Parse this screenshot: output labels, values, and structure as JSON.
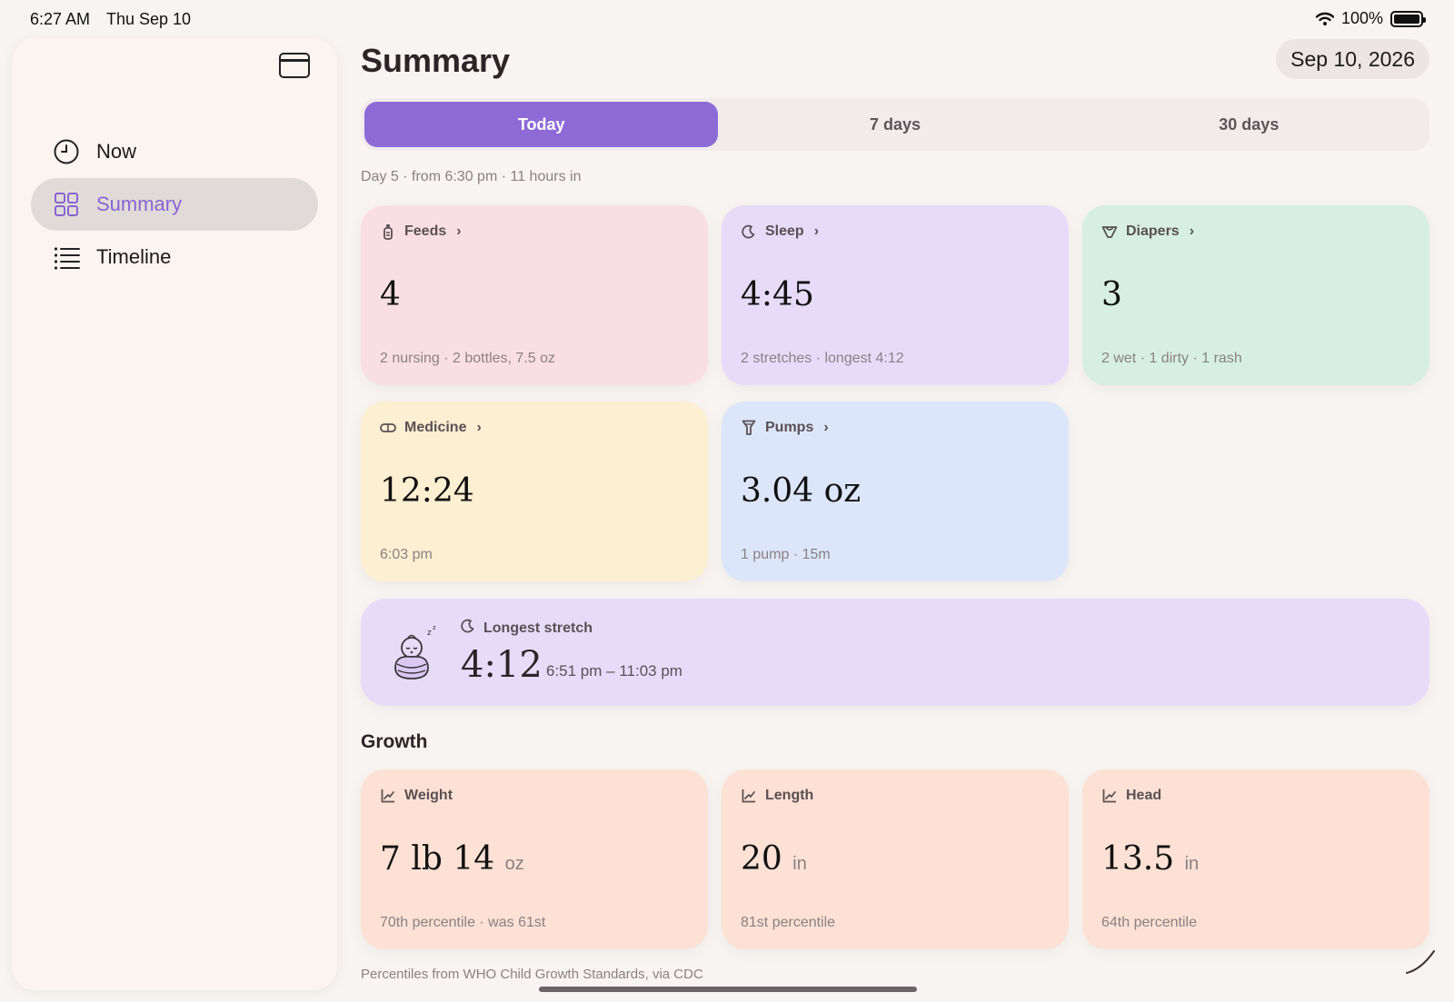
{
  "status": {
    "time": "6:27 AM",
    "day": "Thu Sep 10",
    "battery": "100%"
  },
  "sidebar": {
    "items": [
      {
        "label": "Now",
        "icon": "clock-icon"
      },
      {
        "label": "Summary",
        "icon": "grid-icon"
      },
      {
        "label": "Timeline",
        "icon": "list-icon"
      }
    ]
  },
  "header": {
    "title": "Summary",
    "date": "Sep 10, 2026"
  },
  "tabs": [
    {
      "label": "Today"
    },
    {
      "label": "7 days"
    },
    {
      "label": "30 days"
    }
  ],
  "subtitle": "Day 5 · from 6:30 pm · 11 hours in",
  "cards": {
    "feeds": {
      "label": "Feeds",
      "value": "4",
      "detail": "2 nursing · 2 bottles, 7.5 oz"
    },
    "sleep": {
      "label": "Sleep",
      "value": "4:45",
      "detail": "2 stretches · longest 4:12"
    },
    "diapers": {
      "label": "Diapers",
      "value": "3",
      "detail": "2 wet · 1 dirty · 1 rash"
    },
    "medicine": {
      "label": "Medicine",
      "value": "12:24",
      "detail": "6:03 pm"
    },
    "pumps": {
      "label": "Pumps",
      "value": "3.04 oz",
      "detail": "1 pump · 15m"
    }
  },
  "longest_stretch": {
    "label": "Longest stretch",
    "value": "4:12",
    "range": "6:51 pm – 11:03 pm"
  },
  "growth": {
    "title": "Growth",
    "weight": {
      "label": "Weight",
      "value": "7 lb 14",
      "unit": "oz",
      "detail": "70th percentile · was 61st"
    },
    "length": {
      "label": "Length",
      "value": "20",
      "unit": "in",
      "detail": "81st percentile"
    },
    "head": {
      "label": "Head",
      "value": "13.5",
      "unit": "in",
      "detail": "64th percentile"
    }
  },
  "footnote": "Percentiles from WHO Child Growth Standards, via CDC",
  "colors": {
    "accent": "#8d6ad6",
    "feeds": "#f9dfe3",
    "sleep": "#e6dcfa",
    "diapers": "#d7efe3",
    "medicine": "#fdefd1",
    "pumps": "#dce6fa",
    "growth": "#fce1d4"
  }
}
